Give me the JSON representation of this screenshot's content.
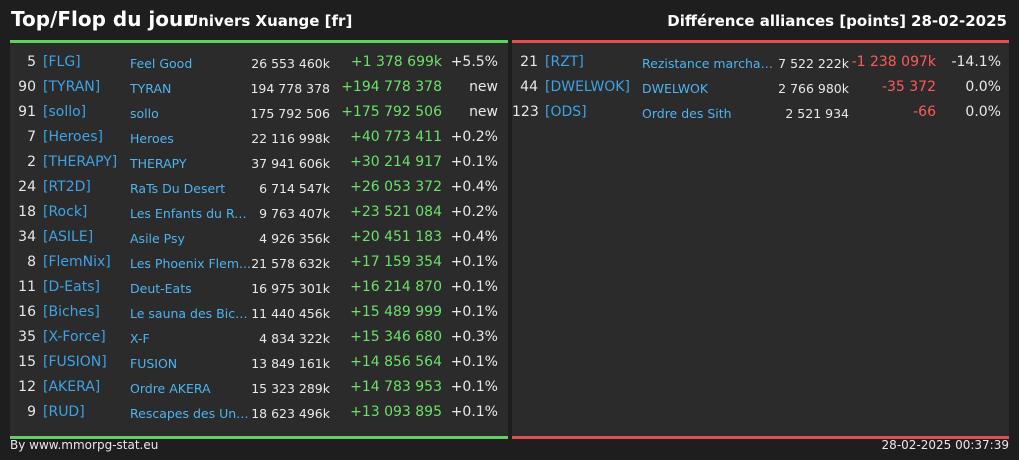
{
  "header": {
    "title": "Top/Flop du jour",
    "universe": "Univers Xuange [fr]",
    "metric": "Différence alliances [points]",
    "date": "28-02-2025"
  },
  "top": [
    {
      "rank": "5",
      "tag": "[FLG]",
      "name": "Feel Good",
      "points": "26 553 460k",
      "delta": "+1 378 699k",
      "pct": "+5.5%"
    },
    {
      "rank": "90",
      "tag": "[TYRAN]",
      "name": "TYRAN",
      "points": "194 778 378",
      "delta": "+194 778 378",
      "pct": "new"
    },
    {
      "rank": "91",
      "tag": "[sollo]",
      "name": "sollo",
      "points": "175 792 506",
      "delta": "+175 792 506",
      "pct": "new"
    },
    {
      "rank": "7",
      "tag": "[Heroes]",
      "name": "Heroes",
      "points": "22 116 998k",
      "delta": "+40 773 411",
      "pct": "+0.2%"
    },
    {
      "rank": "2",
      "tag": "[THERAPY]",
      "name": "THERAPY",
      "points": "37 941 606k",
      "delta": "+30 214 917",
      "pct": "+0.1%"
    },
    {
      "rank": "24",
      "tag": "[RT2D]",
      "name": "RaTs Du Desert",
      "points": "6 714 547k",
      "delta": "+26 053 372",
      "pct": "+0.4%"
    },
    {
      "rank": "18",
      "tag": "[Rock]",
      "name": "Les Enfants du Rock",
      "points": "9 763 407k",
      "delta": "+23 521 084",
      "pct": "+0.2%"
    },
    {
      "rank": "34",
      "tag": "[ASILE]",
      "name": "Asile Psy",
      "points": "4 926 356k",
      "delta": "+20 451 183",
      "pct": "+0.4%"
    },
    {
      "rank": "8",
      "tag": "[FlemNix]",
      "name": "Les Phoenix Flem...",
      "points": "21 578 632k",
      "delta": "+17 159 354",
      "pct": "+0.1%"
    },
    {
      "rank": "11",
      "tag": "[D-Eats]",
      "name": "Deut-Eats",
      "points": "16 975 301k",
      "delta": "+16 214 870",
      "pct": "+0.1%"
    },
    {
      "rank": "16",
      "tag": "[Biches]",
      "name": "Le sauna des Biche...",
      "points": "11 440 456k",
      "delta": "+15 489 999",
      "pct": "+0.1%"
    },
    {
      "rank": "35",
      "tag": "[X-Force]",
      "name": "X-F",
      "points": "4 834 322k",
      "delta": "+15 346 680",
      "pct": "+0.3%"
    },
    {
      "rank": "15",
      "tag": "[FUSION]",
      "name": "FUSION",
      "points": "13 849 161k",
      "delta": "+14 856 564",
      "pct": "+0.1%"
    },
    {
      "rank": "12",
      "tag": "[AKERA]",
      "name": "Ordre AKERA",
      "points": "15 323 289k",
      "delta": "+14 783 953",
      "pct": "+0.1%"
    },
    {
      "rank": "9",
      "tag": "[RUD]",
      "name": "Rescapes des Univ...",
      "points": "18 623 496k",
      "delta": "+13 093 895",
      "pct": "+0.1%"
    }
  ],
  "flop": [
    {
      "rank": "21",
      "tag": "[RZT]",
      "name": "Rezistance marchande",
      "points": "7 522 222k",
      "delta": "-1 238 097k",
      "pct": "-14.1%"
    },
    {
      "rank": "44",
      "tag": "[DWELWOK]",
      "name": "DWELWOK",
      "points": "2 766 980k",
      "delta": "-35 372",
      "pct": "0.0%"
    },
    {
      "rank": "123",
      "tag": "[ODS]",
      "name": "Ordre des Sith",
      "points": "2 521 934",
      "delta": "-66",
      "pct": "0.0%"
    }
  ],
  "footer": {
    "source": "By www.mmorpg-stat.eu",
    "timestamp": "28-02-2025 00:37:39"
  },
  "colors": {
    "positive": "#6be06b",
    "negative": "#ff5a5a",
    "link": "#3ea2e5",
    "top_border": "#5fd35f",
    "flop_border": "#e05050"
  }
}
